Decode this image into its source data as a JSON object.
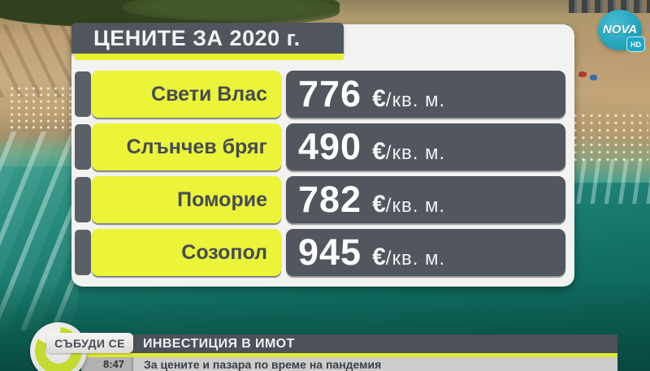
{
  "channel": {
    "name": "NOVA",
    "badge": "HD"
  },
  "chart_data": {
    "type": "table",
    "title": "ЦЕНИТЕ ЗА 2020 г.",
    "categories": [
      "Свети Влас",
      "Слънчев бряг",
      "Поморие",
      "Созопол"
    ],
    "values": [
      776,
      490,
      782,
      945
    ],
    "unit": "€/кв. м."
  },
  "price_table": {
    "title": "ЦЕНИТЕ ЗА 2020 г.",
    "unit_currency": "€",
    "unit_suffix": "/кв. м.",
    "rows": [
      {
        "location": "Свети Влас",
        "price": "776"
      },
      {
        "location": "Слънчев бряг",
        "price": "490"
      },
      {
        "location": "Поморие",
        "price": "782"
      },
      {
        "location": "Созопол",
        "price": "945"
      }
    ]
  },
  "ticker": {
    "show_name": "СЪБУДИ СЕ",
    "topic": "ИНВЕСТИЦИЯ В ИМОТ",
    "time": "8:47",
    "subtitle": "За цените и пазара по време на пандемия"
  },
  "colors": {
    "accent_yellow": "#ebf438",
    "panel_gray": "#51565f",
    "nova_teal": "#1ba8c4",
    "sea_teal": "#17776b"
  }
}
